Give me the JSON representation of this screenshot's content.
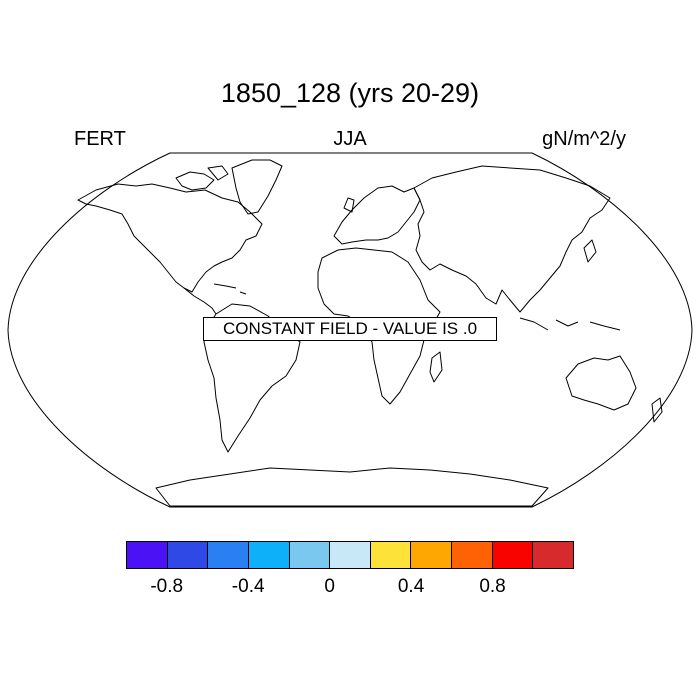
{
  "title": "1850_128 (yrs 20-29)",
  "left_label": "FERT",
  "center_label": "JJA",
  "right_label": "gN/m^2/y",
  "map_message": "CONSTANT FIELD - VALUE IS .0",
  "projection": "Robinson",
  "colorbar": {
    "colors": [
      "#4b12f5",
      "#2e49e6",
      "#2a7ff2",
      "#0fb0fa",
      "#7ac8ef",
      "#c8e7f7",
      "#fde23a",
      "#fea602",
      "#fe6204",
      "#f90301",
      "#d72a2c"
    ],
    "tick_labels": [
      "-0.8",
      "-0.4",
      "0",
      "0.4",
      "0.8"
    ]
  }
}
